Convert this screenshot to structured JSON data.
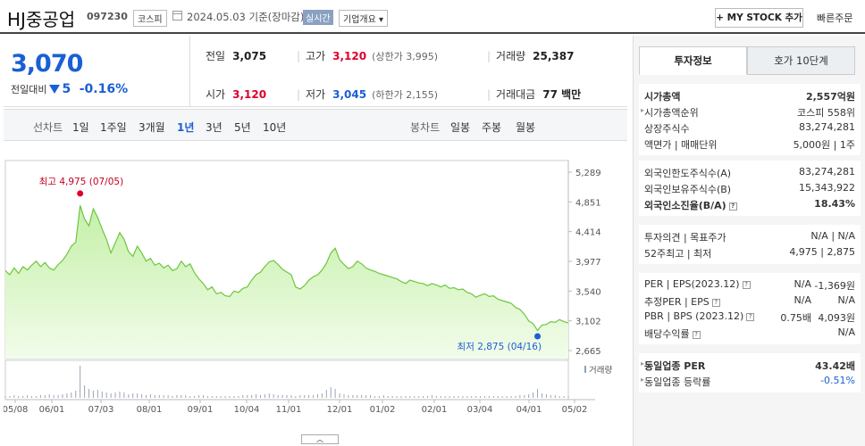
{
  "header": {
    "name": "HJ중공업",
    "code": "097230",
    "market": "코스피",
    "date": "2024.05.03  기준(장마감)",
    "realtime": "실시간",
    "overview": "기업개요 ▾",
    "mystock": "+ MY STOCK 추가",
    "quick_order": "빠른주문"
  },
  "summary": {
    "price": "3,070",
    "change_label": "전일대비",
    "change_value": "5",
    "change_pct": "-0.16%",
    "prev_label": "전일",
    "prev": "3,075",
    "high_label": "고가",
    "high": "3,120",
    "upper_limit": "(상한가 3,995)",
    "volume_label": "거래량",
    "volume": "25,387",
    "open_label": "시가",
    "open": "3,120",
    "low_label": "저가",
    "low": "3,045",
    "lower_limit": "(하한가 2,155)",
    "amount_label": "거래대금",
    "amount": "77 백만"
  },
  "tabs": {
    "line_chart": "선차트",
    "periods": [
      "1일",
      "1주일",
      "3개월",
      "1년",
      "3년",
      "5년",
      "10년"
    ],
    "active_period": "1년",
    "candle_chart": "봉차트",
    "candles": [
      "일봉",
      "주봉",
      "월봉"
    ]
  },
  "chart_data": {
    "type": "area",
    "x_tick_labels": [
      "05/08",
      "06/01",
      "07/03",
      "08/01",
      "09/01",
      "10/04",
      "11/01",
      "12/01",
      "01/02",
      "02/01",
      "03/04",
      "04/01",
      "05/02"
    ],
    "y_tick_labels": [
      "5,289",
      "4,851",
      "4,414",
      "3,977",
      "3,540",
      "3,102",
      "2,665"
    ],
    "ylim": [
      2665,
      5289
    ],
    "high_annotation": "최고 4,975 (07/05)",
    "low_annotation": "최저 2,875 (04/16)",
    "volume_label": "거래량",
    "price_series": [
      3840,
      3780,
      3880,
      3800,
      3900,
      3850,
      3920,
      3980,
      3900,
      3960,
      3880,
      3850,
      3930,
      3990,
      4080,
      4200,
      4260,
      4800,
      4600,
      4500,
      4750,
      4620,
      4450,
      4300,
      4100,
      4250,
      4400,
      4300,
      4120,
      4050,
      4200,
      4100,
      3980,
      4020,
      3920,
      3950,
      3880,
      3920,
      3840,
      3870,
      3980,
      3900,
      3940,
      3810,
      3720,
      3650,
      3560,
      3600,
      3500,
      3520,
      3470,
      3460,
      3540,
      3520,
      3580,
      3600,
      3700,
      3780,
      3820,
      3900,
      3970,
      3990,
      3930,
      3860,
      3820,
      3780,
      3600,
      3570,
      3620,
      3700,
      3750,
      3780,
      3850,
      3950,
      4100,
      4170,
      4000,
      3930,
      3870,
      3900,
      3980,
      3940,
      3880,
      3850,
      3830,
      3800,
      3780,
      3760,
      3740,
      3720,
      3680,
      3650,
      3700,
      3680,
      3660,
      3650,
      3620,
      3650,
      3630,
      3600,
      3630,
      3580,
      3590,
      3560,
      3570,
      3520,
      3500,
      3450,
      3480,
      3500,
      3460,
      3470,
      3420,
      3400,
      3380,
      3360,
      3300,
      3270,
      3200,
      3100,
      3060,
      2960,
      3040,
      3050,
      3090,
      3080,
      3120,
      3090,
      3070
    ],
    "volume_series": [
      2,
      2,
      3,
      2,
      2,
      3,
      2,
      2,
      3,
      3,
      4,
      3,
      3,
      4,
      5,
      6,
      8,
      36,
      14,
      10,
      8,
      9,
      7,
      6,
      5,
      6,
      7,
      6,
      4,
      5,
      5,
      4,
      3,
      4,
      3,
      3,
      3,
      3,
      2,
      3,
      3,
      3,
      2,
      2,
      3,
      3,
      2,
      2,
      2,
      2,
      2,
      2,
      2,
      2,
      3,
      3,
      3,
      4,
      3,
      4,
      5,
      4,
      3,
      3,
      3,
      3,
      2,
      3,
      3,
      3,
      3,
      4,
      5,
      9,
      12,
      10,
      5,
      4,
      3,
      3,
      3,
      3,
      3,
      3,
      2,
      2,
      3,
      2,
      2,
      2,
      2,
      2,
      2,
      2,
      2,
      2,
      2,
      3,
      2,
      2,
      2,
      2,
      2,
      2,
      2,
      2,
      2,
      2,
      2,
      2,
      2,
      2,
      2,
      2,
      2,
      2,
      2,
      3,
      3,
      4,
      6,
      10,
      5,
      4,
      3,
      3,
      2,
      2,
      2
    ]
  },
  "right_panel": {
    "tab_active": "투자정보",
    "tab_other": "호가 10단계",
    "group1": [
      {
        "k": "시가총액",
        "v": "2,557억원",
        "bold": true
      },
      {
        "k": "시가총액순위",
        "v": "코스피  558위",
        "arrow": true
      },
      {
        "k": "상장주식수",
        "v": "83,274,281"
      },
      {
        "k": "액면가 | 매매단위",
        "v": "5,000원  |  1주"
      }
    ],
    "group2": [
      {
        "k": "외국인한도주식수(A)",
        "v": "83,274,281"
      },
      {
        "k": "외국인보유주식수(B)",
        "v": "15,343,922"
      },
      {
        "k": "외국인소진율(B/A)",
        "v": "18.43%",
        "bold": true,
        "q": true
      }
    ],
    "group3": [
      {
        "k": "투자의견 | 목표주가",
        "v": "N/A  |  N/A"
      },
      {
        "k": "52주최고 | 최저",
        "v": "4,975  |  2,875"
      }
    ],
    "group4": [
      {
        "k": "PER | EPS(2023.12)",
        "v1": "N/A",
        "v": "-1,369원",
        "q": true
      },
      {
        "k": "추정PER | EPS",
        "v1": "N/A",
        "v": "N/A",
        "q": true
      },
      {
        "k": "PBR | BPS (2023.12)",
        "v1": "0.75배",
        "v": "4,093원",
        "q": true
      },
      {
        "k": "배당수익률",
        "v": "N/A",
        "q": true
      }
    ],
    "group5": [
      {
        "k": "동일업종 PER",
        "v": "43.42배",
        "bold": true,
        "arrow": true
      },
      {
        "k": "동일업종 등락률",
        "v": "-0.51%",
        "blue": true,
        "arrow": true
      }
    ]
  }
}
